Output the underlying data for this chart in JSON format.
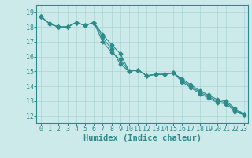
{
  "xlabel": "Humidex (Indice chaleur)",
  "x_values": [
    0,
    1,
    2,
    3,
    4,
    5,
    6,
    7,
    8,
    9,
    10,
    11,
    12,
    13,
    14,
    15,
    16,
    17,
    18,
    19,
    20,
    21,
    22,
    23
  ],
  "line1": [
    18.7,
    18.2,
    18.0,
    18.0,
    18.3,
    18.1,
    18.3,
    17.0,
    16.3,
    15.8,
    15.0,
    15.1,
    14.7,
    14.8,
    14.8,
    14.9,
    14.3,
    13.9,
    13.5,
    13.2,
    12.9,
    12.8,
    12.3,
    12.1
  ],
  "line2": [
    18.7,
    18.2,
    18.0,
    18.0,
    18.3,
    18.1,
    18.3,
    17.3,
    16.5,
    15.5,
    15.0,
    15.1,
    14.7,
    14.8,
    14.8,
    14.9,
    14.4,
    14.0,
    13.6,
    13.3,
    13.0,
    12.9,
    12.4,
    12.1
  ],
  "line3": [
    18.7,
    18.2,
    18.0,
    18.0,
    18.3,
    18.1,
    18.3,
    17.5,
    16.8,
    16.2,
    15.0,
    15.1,
    14.7,
    14.8,
    14.8,
    14.9,
    14.5,
    14.1,
    13.7,
    13.4,
    13.1,
    13.0,
    12.5,
    12.1
  ],
  "line_color": "#2e8b8b",
  "bg_color": "#cceaea",
  "grid_color": "#aad4d4",
  "ylim": [
    11.5,
    19.5
  ],
  "yticks": [
    12,
    13,
    14,
    15,
    16,
    17,
    18,
    19
  ],
  "xlim": [
    -0.5,
    23.5
  ],
  "xticks": [
    0,
    1,
    2,
    3,
    4,
    5,
    6,
    7,
    8,
    9,
    10,
    11,
    12,
    13,
    14,
    15,
    16,
    17,
    18,
    19,
    20,
    21,
    22,
    23
  ],
  "tick_fontsize": 6.0,
  "xlabel_fontsize": 7.5,
  "marker_size": 2.5,
  "line_width": 0.8
}
